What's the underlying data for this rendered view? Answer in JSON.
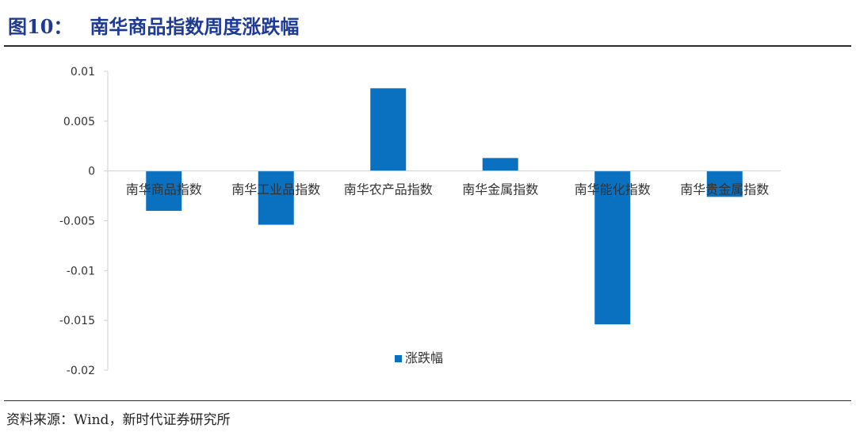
{
  "figure": {
    "label": "图10：",
    "title": "南华商品指数周度涨跌幅",
    "source": "资料来源：Wind，新时代证券研究所"
  },
  "chart_data": {
    "type": "bar",
    "categories": [
      "南华商品指数",
      "南华工业品指数",
      "南华农产品指数",
      "南华金属指数",
      "南华能化指数",
      "南华贵金属指数"
    ],
    "series": [
      {
        "name": "涨跌幅",
        "values": [
          -0.004,
          -0.0054,
          0.0083,
          0.0013,
          -0.0154,
          -0.0026
        ],
        "color": "#0a70c0"
      }
    ],
    "ylim": [
      -0.02,
      0.01
    ],
    "yticks": [
      0.01,
      0.005,
      0,
      -0.005,
      -0.01,
      -0.015,
      -0.02
    ],
    "ytick_labels": [
      "0.01",
      "0.005",
      "0",
      "-0.005",
      "-0.01",
      "-0.015",
      "-0.02"
    ],
    "legend": "bottom-center",
    "grid": false
  }
}
